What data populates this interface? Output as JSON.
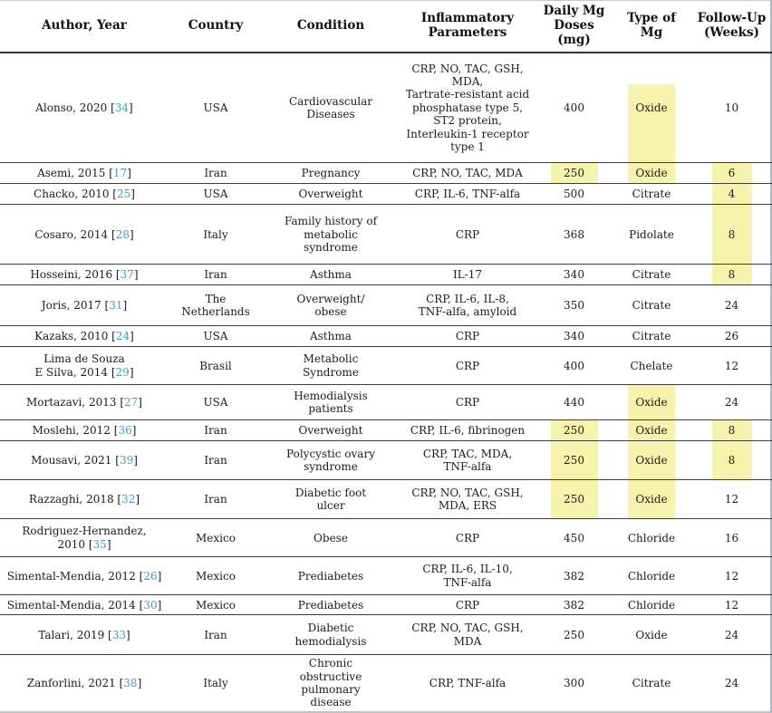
{
  "colors": {
    "highlight": "#F6F3AC",
    "citation_link": "#3E9EC7",
    "text": "#1c1c1c",
    "rule": "#3d3d3d"
  },
  "citation": {
    "open": "[",
    "close": "]"
  },
  "table": {
    "columns": [
      {
        "key": "author",
        "label": "Author, Year"
      },
      {
        "key": "country",
        "label": "Country"
      },
      {
        "key": "condition",
        "label": "Condition"
      },
      {
        "key": "inflammatory",
        "label": "Inflammatory\nParameters"
      },
      {
        "key": "dose",
        "label": "Daily Mg\nDoses\n(mg)"
      },
      {
        "key": "type",
        "label": "Type of\nMg"
      },
      {
        "key": "followup",
        "label": "Follow-Up\n(Weeks)"
      }
    ],
    "rows": [
      {
        "author": "Alonso, 2020",
        "ref": "34",
        "country": "USA",
        "condition": "Cardiovascular\nDiseases",
        "inflammatory": "CRP, NO, TAC, GSH,\nMDA,\nTartrate-resistant acid\nphosphatase type 5,\nST2 protein,\nInterleukin-1 receptor\ntype 1",
        "dose": "400",
        "type": "Oxide",
        "followup": "10",
        "hl": {
          "type": "partial"
        }
      },
      {
        "author": "Asemi, 2015",
        "ref": "17",
        "country": "Iran",
        "condition": "Pregnancy",
        "inflammatory": "CRP, NO, TAC, MDA",
        "dose": "250",
        "type": "Oxide",
        "followup": "6",
        "hl": {
          "dose": true,
          "type": true,
          "followup": true
        }
      },
      {
        "author": "Chacko, 2010",
        "ref": "25",
        "country": "USA",
        "condition": "Overweight",
        "inflammatory": "CRP, IL-6, TNF-alfa",
        "dose": "500",
        "type": "Citrate",
        "followup": "4",
        "hl": {
          "followup": true
        }
      },
      {
        "author": "Cosaro, 2014",
        "ref": "28",
        "country": "Italy",
        "condition": "Family history of\nmetabolic\nsyndrome",
        "inflammatory": "CRP",
        "dose": "368",
        "type": "Pidolate",
        "followup": "8",
        "hl": {
          "followup": true
        }
      },
      {
        "author": "Hosseini, 2016",
        "ref": "37",
        "country": "Iran",
        "condition": "Asthma",
        "inflammatory": "IL-17",
        "dose": "340",
        "type": "Citrate",
        "followup": "8",
        "hl": {
          "followup": true
        }
      },
      {
        "author": "Joris, 2017",
        "ref": "31",
        "country": "The\nNetherlands",
        "condition": "Overweight/\nobese",
        "inflammatory": "CRP, IL-6, IL-8,\nTNF-alfa, amyloid",
        "dose": "350",
        "type": "Citrate",
        "followup": "24",
        "hl": {}
      },
      {
        "author": "Kazaks, 2010",
        "ref": "24",
        "country": "USA",
        "condition": "Asthma",
        "inflammatory": "CRP",
        "dose": "340",
        "type": "Citrate",
        "followup": "26",
        "hl": {}
      },
      {
        "author": "Lima de Souza\nE Silva, 2014",
        "ref": "29",
        "country": "Brasil",
        "condition": "Metabolic\nSyndrome",
        "inflammatory": "CRP",
        "dose": "400",
        "type": "Chelate",
        "followup": "12",
        "hl": {}
      },
      {
        "author": "Mortazavi, 2013",
        "ref": "27",
        "country": "USA",
        "condition": "Hemodialysis\npatients",
        "inflammatory": "CRP",
        "dose": "440",
        "type": "Oxide",
        "followup": "24",
        "hl": {
          "type": true
        }
      },
      {
        "author": "Moslehi, 2012",
        "ref": "36",
        "country": "Iran",
        "condition": "Overweight",
        "inflammatory": "CRP, IL-6, fibrinogen",
        "dose": "250",
        "type": "Oxide",
        "followup": "8",
        "hl": {
          "dose": true,
          "type": true,
          "followup": true
        }
      },
      {
        "author": "Mousavi, 2021",
        "ref": "39",
        "country": "Iran",
        "condition": "Polycystic ovary\nsyndrome",
        "inflammatory": "CRP, TAC, MDA,\nTNF-alfa",
        "dose": "250",
        "type": "Oxide",
        "followup": "8",
        "hl": {
          "dose": true,
          "type": true,
          "followup": true
        }
      },
      {
        "author": "Razzaghi, 2018",
        "ref": "32",
        "country": "Iran",
        "condition": "Diabetic foot\nulcer",
        "inflammatory": "CRP, NO, TAC, GSH,\nMDA, ERS",
        "dose": "250",
        "type": "Oxide",
        "followup": "12",
        "hl": {
          "dose": true,
          "type": true
        }
      },
      {
        "author": "Rodriguez-Hernandez,\n2010",
        "ref": "35",
        "country": "Mexico",
        "condition": "Obese",
        "inflammatory": "CRP",
        "dose": "450",
        "type": "Chloride",
        "followup": "16",
        "hl": {}
      },
      {
        "author": "Simental-Mendia, 2012",
        "ref": "26",
        "country": "Mexico",
        "condition": "Prediabetes",
        "inflammatory": "CRP, IL-6, IL-10,\nTNF-alfa",
        "dose": "382",
        "type": "Chloride",
        "followup": "12",
        "hl": {}
      },
      {
        "author": "Simental-Mendia, 2014",
        "ref": "30",
        "country": "Mexico",
        "condition": "Prediabetes",
        "inflammatory": "CRP",
        "dose": "382",
        "type": "Chloride",
        "followup": "12",
        "hl": {}
      },
      {
        "author": "Talari, 2019",
        "ref": "33",
        "country": "Iran",
        "condition": "Diabetic\nhemodialysis",
        "inflammatory": "CRP, NO, TAC, GSH,\nMDA",
        "dose": "250",
        "type": "Oxide",
        "followup": "24",
        "hl": {}
      },
      {
        "author": "Zanforlini, 2021",
        "ref": "38",
        "country": "Italy",
        "condition": "Chronic\nobstructive\npulmonary\ndisease",
        "inflammatory": "CRP, TNF-alfa",
        "dose": "300",
        "type": "Citrate",
        "followup": "24",
        "hl": {}
      }
    ]
  }
}
